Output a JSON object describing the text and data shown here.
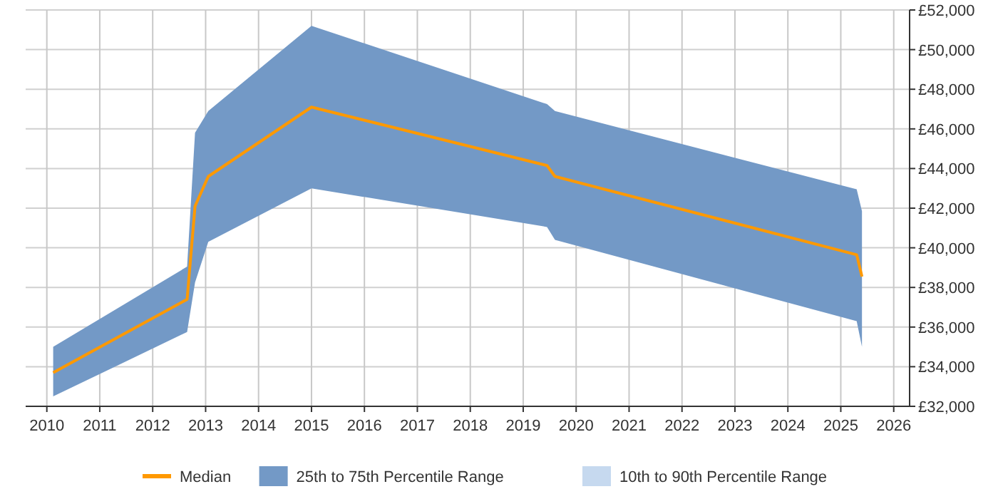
{
  "chart_data": {
    "type": "line",
    "x": [
      2010.12,
      2012.65,
      2012.8,
      2013.05,
      2015.0,
      2019.45,
      2019.6,
      2025.3,
      2025.4
    ],
    "series": [
      {
        "name": "Median",
        "color": "#ff9900",
        "values": [
          33700,
          37400,
          42100,
          43600,
          47100,
          44150,
          43600,
          39650,
          38550
        ]
      },
      {
        "type": "area",
        "name": "25th to 75th Percentile Range",
        "color": "#7399c6",
        "values": [
          null,
          null,
          null,
          null,
          null,
          null,
          null,
          null,
          null
        ],
        "lower": [
          32500,
          35750,
          38250,
          40300,
          43000,
          41050,
          40400,
          36300,
          35000
        ],
        "upper": [
          35000,
          39050,
          45800,
          46900,
          51200,
          47250,
          46900,
          42950,
          41850
        ]
      },
      {
        "type": "area",
        "name": "10th to 90th Percentile Range",
        "color": "#c6d9ef",
        "values": [
          null,
          null,
          null,
          null,
          null,
          null,
          null,
          null,
          null
        ],
        "lower": [
          null,
          null,
          null,
          null,
          null,
          null,
          null,
          null,
          null
        ],
        "upper": [
          null,
          null,
          null,
          null,
          null,
          null,
          null,
          null,
          null
        ]
      }
    ],
    "xlim": [
      2009.6,
      2026.3
    ],
    "xticks": [
      2010,
      2011,
      2012,
      2013,
      2014,
      2015,
      2016,
      2017,
      2018,
      2019,
      2020,
      2021,
      2022,
      2023,
      2024,
      2025,
      2026
    ],
    "ylim": [
      32000,
      52000
    ],
    "yticks": [
      {
        "value": 32000,
        "label": "£32,000"
      },
      {
        "value": 34000,
        "label": "£34,000"
      },
      {
        "value": 36000,
        "label": "£36,000"
      },
      {
        "value": 38000,
        "label": "£38,000"
      },
      {
        "value": 40000,
        "label": "£40,000"
      },
      {
        "value": 42000,
        "label": "£42,000"
      },
      {
        "value": 44000,
        "label": "£44,000"
      },
      {
        "value": 46000,
        "label": "£46,000"
      },
      {
        "value": 48000,
        "label": "£48,000"
      },
      {
        "value": 50000,
        "label": "£50,000"
      },
      {
        "value": 52000,
        "label": "£52,000"
      }
    ],
    "grid": true,
    "legend": "bottom",
    "marker": "none",
    "line_style": "solid"
  }
}
